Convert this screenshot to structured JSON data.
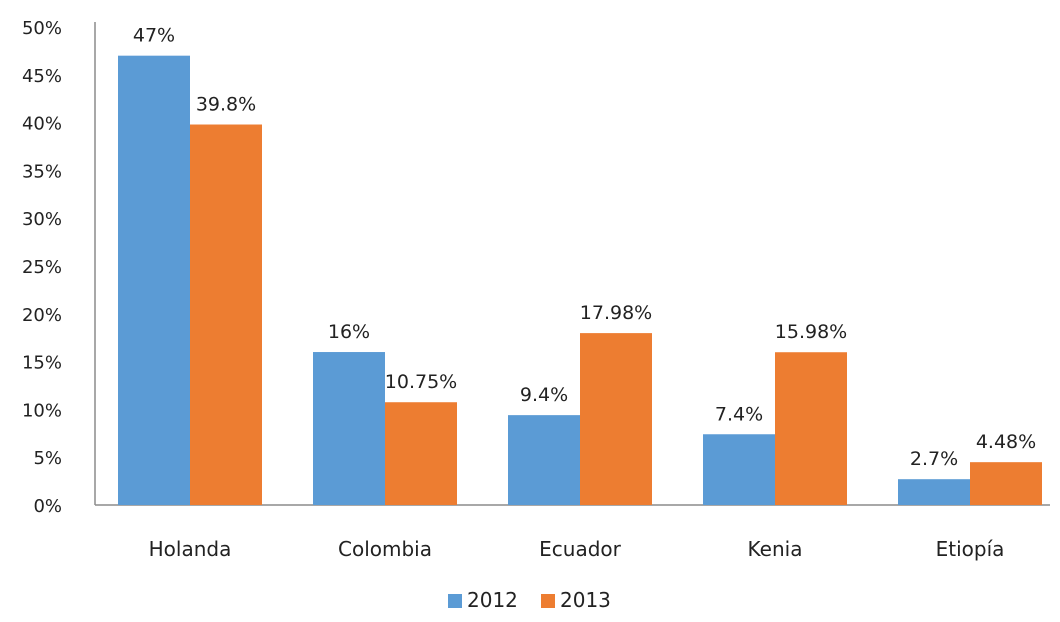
{
  "chart_data": {
    "type": "bar",
    "categories": [
      "Holanda",
      "Colombia",
      "Ecuador",
      "Kenia",
      "Etiopía"
    ],
    "series": [
      {
        "name": "2012",
        "values": [
          47,
          16,
          9.4,
          7.4,
          2.7
        ],
        "labels": [
          "47%",
          "16%",
          "9.4%",
          "7.4%",
          "2.7%"
        ],
        "color": "#5b9bd5"
      },
      {
        "name": "2013",
        "values": [
          39.8,
          10.75,
          17.98,
          15.98,
          4.48
        ],
        "labels": [
          "39.8%",
          "10.75%",
          "17.98%",
          "15.98%",
          "4.48%"
        ],
        "color": "#ed7d31"
      }
    ],
    "ylim": [
      0,
      50
    ],
    "y_ticks": [
      0,
      5,
      10,
      15,
      20,
      25,
      30,
      35,
      40,
      45,
      50
    ],
    "y_tick_labels": [
      "0%",
      "5%",
      "10%",
      "15%",
      "20%",
      "25%",
      "30%",
      "35%",
      "40%",
      "45%",
      "50%"
    ],
    "grid": false,
    "legend_position": "bottom"
  }
}
